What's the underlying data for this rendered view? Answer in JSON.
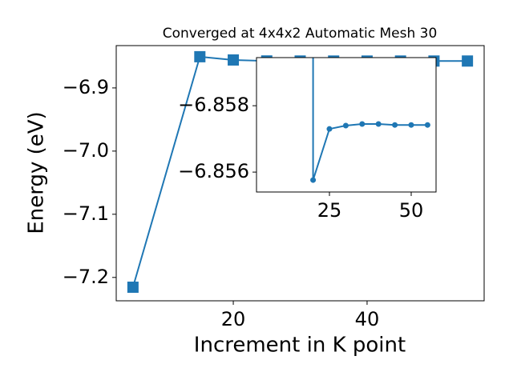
{
  "chart_data": [
    {
      "type": "line",
      "title": "Converged at 4x4x2 Automatic Mesh 30",
      "xlabel": "Increment in K point",
      "ylabel": "Energy (eV)",
      "x": [
        5,
        15,
        20,
        25,
        30,
        35,
        40,
        45,
        50,
        55
      ],
      "series": [
        {
          "color": "#1f77b4",
          "marker": "square",
          "values": [
            -7.2155,
            -6.8506,
            -6.85576,
            -6.8573,
            -6.8574,
            -6.85745,
            -6.85745,
            -6.85742,
            -6.85742,
            -6.85742
          ]
        }
      ],
      "xlim": [
        2.5,
        57.5
      ],
      "xticks": [
        20,
        40
      ],
      "ylim": [
        -7.237,
        -6.833
      ],
      "yticks": [
        {
          "value": -7.2,
          "label": "−7.2"
        },
        {
          "value": -7.1,
          "label": "−7.1"
        },
        {
          "value": -7.0,
          "label": "−7.0"
        },
        {
          "value": -6.9,
          "label": "−6.9"
        }
      ]
    },
    {
      "type": "line",
      "x": [
        20,
        25,
        30,
        35,
        40,
        45,
        50,
        55
      ],
      "series": [
        {
          "color": "#1f77b4",
          "marker": "circle",
          "values": [
            -6.85576,
            -6.8573,
            -6.8574,
            -6.85745,
            -6.85745,
            -6.85742,
            -6.85742,
            -6.85742
          ]
        }
      ],
      "xlim": [
        2.7,
        57.6
      ],
      "xticks": [
        25,
        50
      ],
      "ylim": [
        -6.8554,
        -6.85945
      ],
      "yticks": [
        {
          "value": -6.858,
          "label": "−6.858"
        },
        {
          "value": -6.856,
          "label": "−6.856"
        }
      ]
    }
  ]
}
